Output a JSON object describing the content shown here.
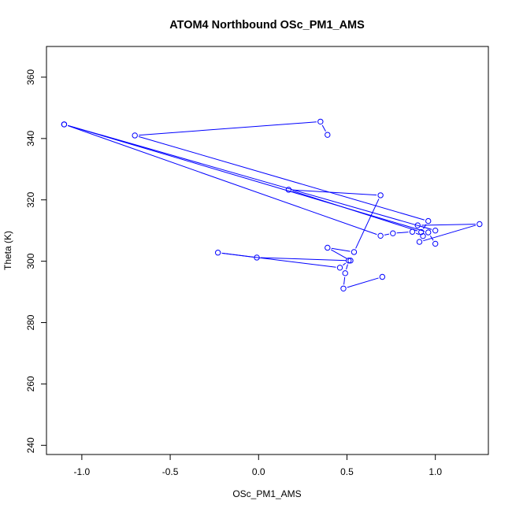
{
  "chart_data": {
    "type": "line",
    "title": "ATOM4 Northbound OSc_PM1_AMS",
    "xlabel": "OSc_PM1_AMS",
    "ylabel": "Theta (K)",
    "xlim": [
      -1.2,
      1.3
    ],
    "ylim": [
      237,
      370
    ],
    "xticks": [
      -1.0,
      -0.5,
      0.0,
      0.5,
      1.0
    ],
    "xtick_labels": [
      "-1.0",
      "-0.5",
      "0.0",
      "0.5",
      "1.0"
    ],
    "yticks": [
      240,
      260,
      280,
      300,
      320,
      340,
      360
    ],
    "ytick_labels": [
      "240",
      "260",
      "280",
      "300",
      "320",
      "340",
      "360"
    ],
    "grid": false,
    "series": [
      {
        "color": "#0000ff",
        "marker": "open-circle",
        "points": [
          {
            "x": 0.7,
            "y": 294.9
          },
          {
            "x": 0.48,
            "y": 291.1
          },
          {
            "x": 0.49,
            "y": 296.1
          },
          {
            "x": 0.51,
            "y": 300.2
          },
          {
            "x": 0.46,
            "y": 297.9
          },
          {
            "x": -0.23,
            "y": 302.8
          },
          {
            "x": -0.01,
            "y": 301.2
          },
          {
            "x": 0.52,
            "y": 300.2
          },
          {
            "x": 0.39,
            "y": 304.4
          },
          {
            "x": 0.54,
            "y": 303.0
          },
          {
            "x": 0.69,
            "y": 321.5
          },
          {
            "x": 0.17,
            "y": 323.3
          },
          {
            "x": 0.92,
            "y": 309.5
          },
          {
            "x": 0.96,
            "y": 313.1
          },
          {
            "x": -0.7,
            "y": 341.0
          },
          {
            "x": 0.35,
            "y": 345.5
          },
          {
            "x": 0.39,
            "y": 341.2
          }
        ]
      },
      {
        "color": "#0000ff",
        "marker": "open-circle",
        "points": [
          {
            "x": -1.1,
            "y": 344.6
          },
          {
            "x": 0.69,
            "y": 308.3
          },
          {
            "x": 0.76,
            "y": 309.1
          },
          {
            "x": 0.87,
            "y": 309.6
          },
          {
            "x": 0.93,
            "y": 308.2
          },
          {
            "x": 0.91,
            "y": 306.3
          },
          {
            "x": 1.25,
            "y": 312.1
          },
          {
            "x": 0.9,
            "y": 311.7
          },
          {
            "x": 1.0,
            "y": 310.0
          },
          {
            "x": -1.1,
            "y": 344.6
          },
          {
            "x": 0.96,
            "y": 309.4
          },
          {
            "x": 1.0,
            "y": 305.7
          }
        ]
      }
    ]
  }
}
